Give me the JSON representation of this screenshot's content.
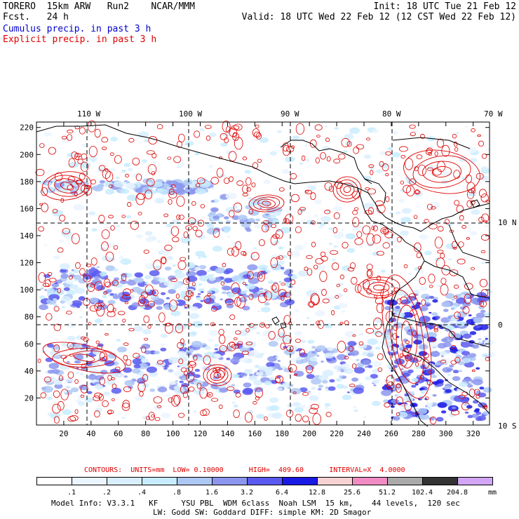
{
  "header": {
    "model": "TORERO  15km ARW   Run2    NCAR/MMM",
    "init": "Init: 18 UTC Tue 21 Feb 12",
    "fcst": "Fcst.   24 h",
    "valid": "Valid: 18 UTC Wed 22 Feb 12 (12 CST Wed 22 Feb 12)",
    "cumulus_label": "Cumulus precip. in past 3 h",
    "explicit_label": "Explicit precip. in past 3 h"
  },
  "map": {
    "top_lon_labels": [
      "110 W",
      "100 W",
      "90 W",
      "80 W",
      "70 W"
    ],
    "right_lat_labels": [
      "10 N",
      "0",
      "10 S"
    ],
    "y_ticks": [
      "220",
      "200",
      "180",
      "160",
      "140",
      "120",
      "100",
      "80",
      "60",
      "40",
      "20"
    ],
    "x_ticks": [
      "20",
      "40",
      "60",
      "80",
      "100",
      "120",
      "140",
      "160",
      "180",
      "200",
      "220",
      "240",
      "260",
      "280",
      "300",
      "320"
    ],
    "x_range": [
      0,
      332
    ],
    "y_range": [
      0,
      224
    ],
    "coast_color": "#000000",
    "explicit_color": "#dd0000",
    "cumulus_color": "#3344ee"
  },
  "contours_info": {
    "text": "CONTOURS:  UNITS=mm  LOW= 0.10000      HIGH=  409.60      INTERVAL=X  4.0000"
  },
  "legend": {
    "labels": [
      ".1",
      ".2",
      ".4",
      ".8",
      "1.6",
      "3.2",
      "6.4",
      "12.8",
      "25.6",
      "51.2",
      "102.4",
      "204.8"
    ],
    "unit": "mm",
    "colors": [
      "#ffffff",
      "#ebf5ff",
      "#d9efff",
      "#c8ecff",
      "#aec8f5",
      "#8c96ef",
      "#5a5af0",
      "#1a1ae6",
      "#f8d2d2",
      "#f08cc3",
      "#aaaaaa",
      "#333333",
      "#d2a5f5"
    ]
  },
  "footer": {
    "line1": "Model Info: V3.3.1   KF     YSU PBL  WDM 6class  Noah LSM  15 km,    44 levels,  120 sec",
    "line2": "LW: Godd SW: Goddard DIFF: simple KM: 2D Smagor"
  }
}
